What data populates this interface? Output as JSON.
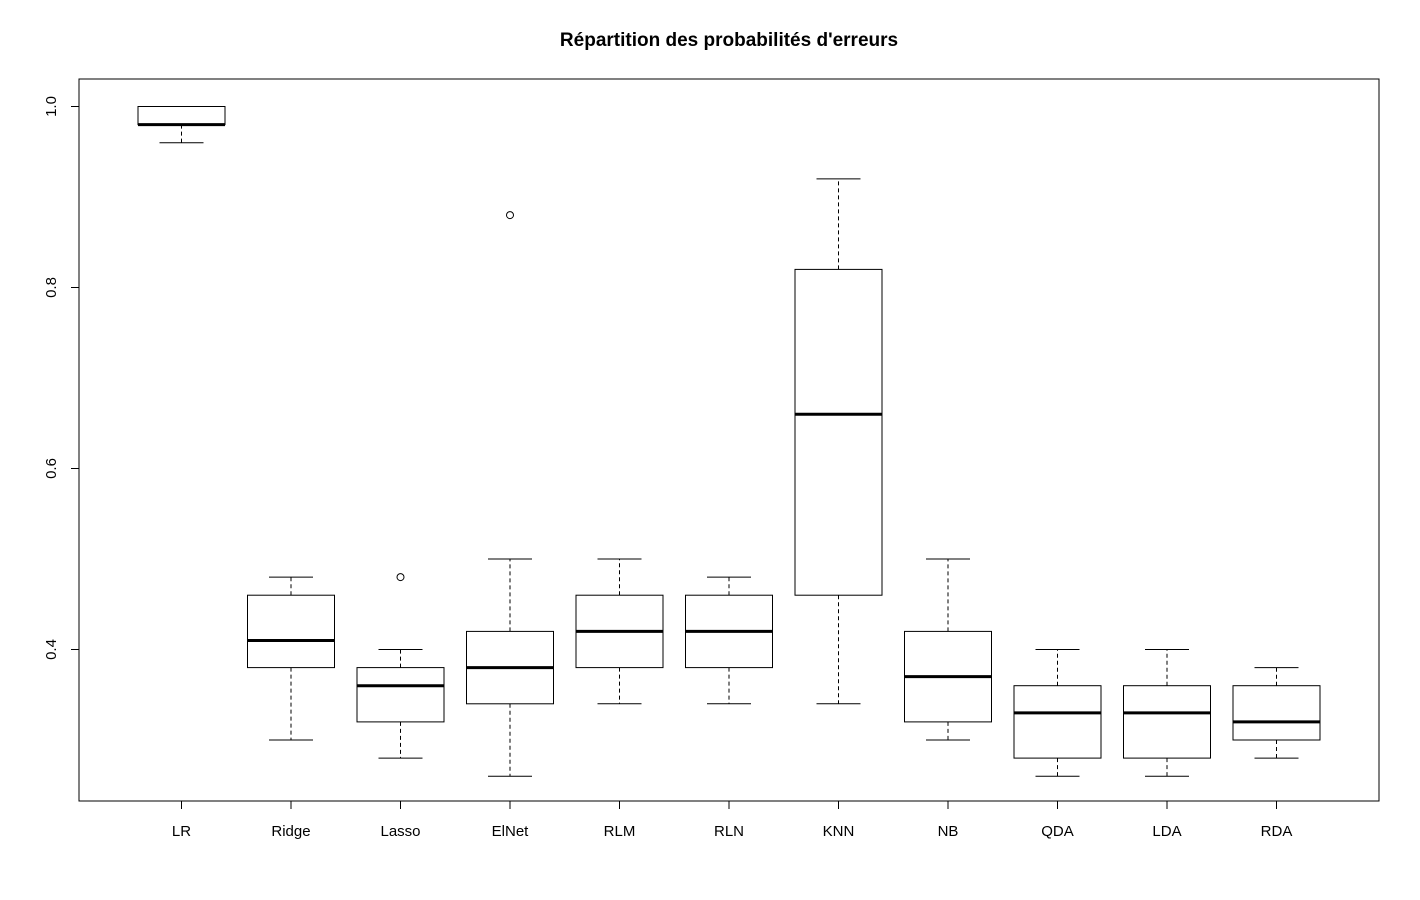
{
  "chart_data": {
    "type": "boxplot",
    "title": "Répartition des probabilités d'erreurs",
    "xlabel": "",
    "ylabel": "",
    "ylim": [
      0.26,
      1.0
    ],
    "y_ticks": [
      "0.4",
      "0.6",
      "0.8",
      "1.0"
    ],
    "grid": false,
    "legend": "none",
    "categories": [
      "LR",
      "Ridge",
      "Lasso",
      "ElNet",
      "RLM",
      "RLN",
      "KNN",
      "NB",
      "QDA",
      "LDA",
      "RDA"
    ],
    "boxes": [
      {
        "name": "LR",
        "whisker_low": 0.96,
        "q1": 0.98,
        "median": 0.98,
        "q3": 1.0,
        "whisker_high": 1.0,
        "outliers": []
      },
      {
        "name": "Ridge",
        "whisker_low": 0.3,
        "q1": 0.38,
        "median": 0.41,
        "q3": 0.46,
        "whisker_high": 0.48,
        "outliers": []
      },
      {
        "name": "Lasso",
        "whisker_low": 0.28,
        "q1": 0.32,
        "median": 0.36,
        "q3": 0.38,
        "whisker_high": 0.4,
        "outliers": [
          0.48
        ]
      },
      {
        "name": "ElNet",
        "whisker_low": 0.26,
        "q1": 0.34,
        "median": 0.38,
        "q3": 0.42,
        "whisker_high": 0.5,
        "outliers": [
          0.88
        ]
      },
      {
        "name": "RLM",
        "whisker_low": 0.34,
        "q1": 0.38,
        "median": 0.42,
        "q3": 0.46,
        "whisker_high": 0.5,
        "outliers": []
      },
      {
        "name": "RLN",
        "whisker_low": 0.34,
        "q1": 0.38,
        "median": 0.42,
        "q3": 0.46,
        "whisker_high": 0.48,
        "outliers": []
      },
      {
        "name": "KNN",
        "whisker_low": 0.34,
        "q1": 0.46,
        "median": 0.66,
        "q3": 0.82,
        "whisker_high": 0.92,
        "outliers": []
      },
      {
        "name": "NB",
        "whisker_low": 0.3,
        "q1": 0.32,
        "median": 0.37,
        "q3": 0.42,
        "whisker_high": 0.5,
        "outliers": []
      },
      {
        "name": "QDA",
        "whisker_low": 0.26,
        "q1": 0.28,
        "median": 0.33,
        "q3": 0.36,
        "whisker_high": 0.4,
        "outliers": []
      },
      {
        "name": "LDA",
        "whisker_low": 0.26,
        "q1": 0.28,
        "median": 0.33,
        "q3": 0.36,
        "whisker_high": 0.4,
        "outliers": []
      },
      {
        "name": "RDA",
        "whisker_low": 0.28,
        "q1": 0.3,
        "median": 0.32,
        "q3": 0.36,
        "whisker_high": 0.38,
        "outliers": []
      }
    ],
    "colors": {
      "box_fill": "#ffffff",
      "stroke": "#000000"
    }
  }
}
